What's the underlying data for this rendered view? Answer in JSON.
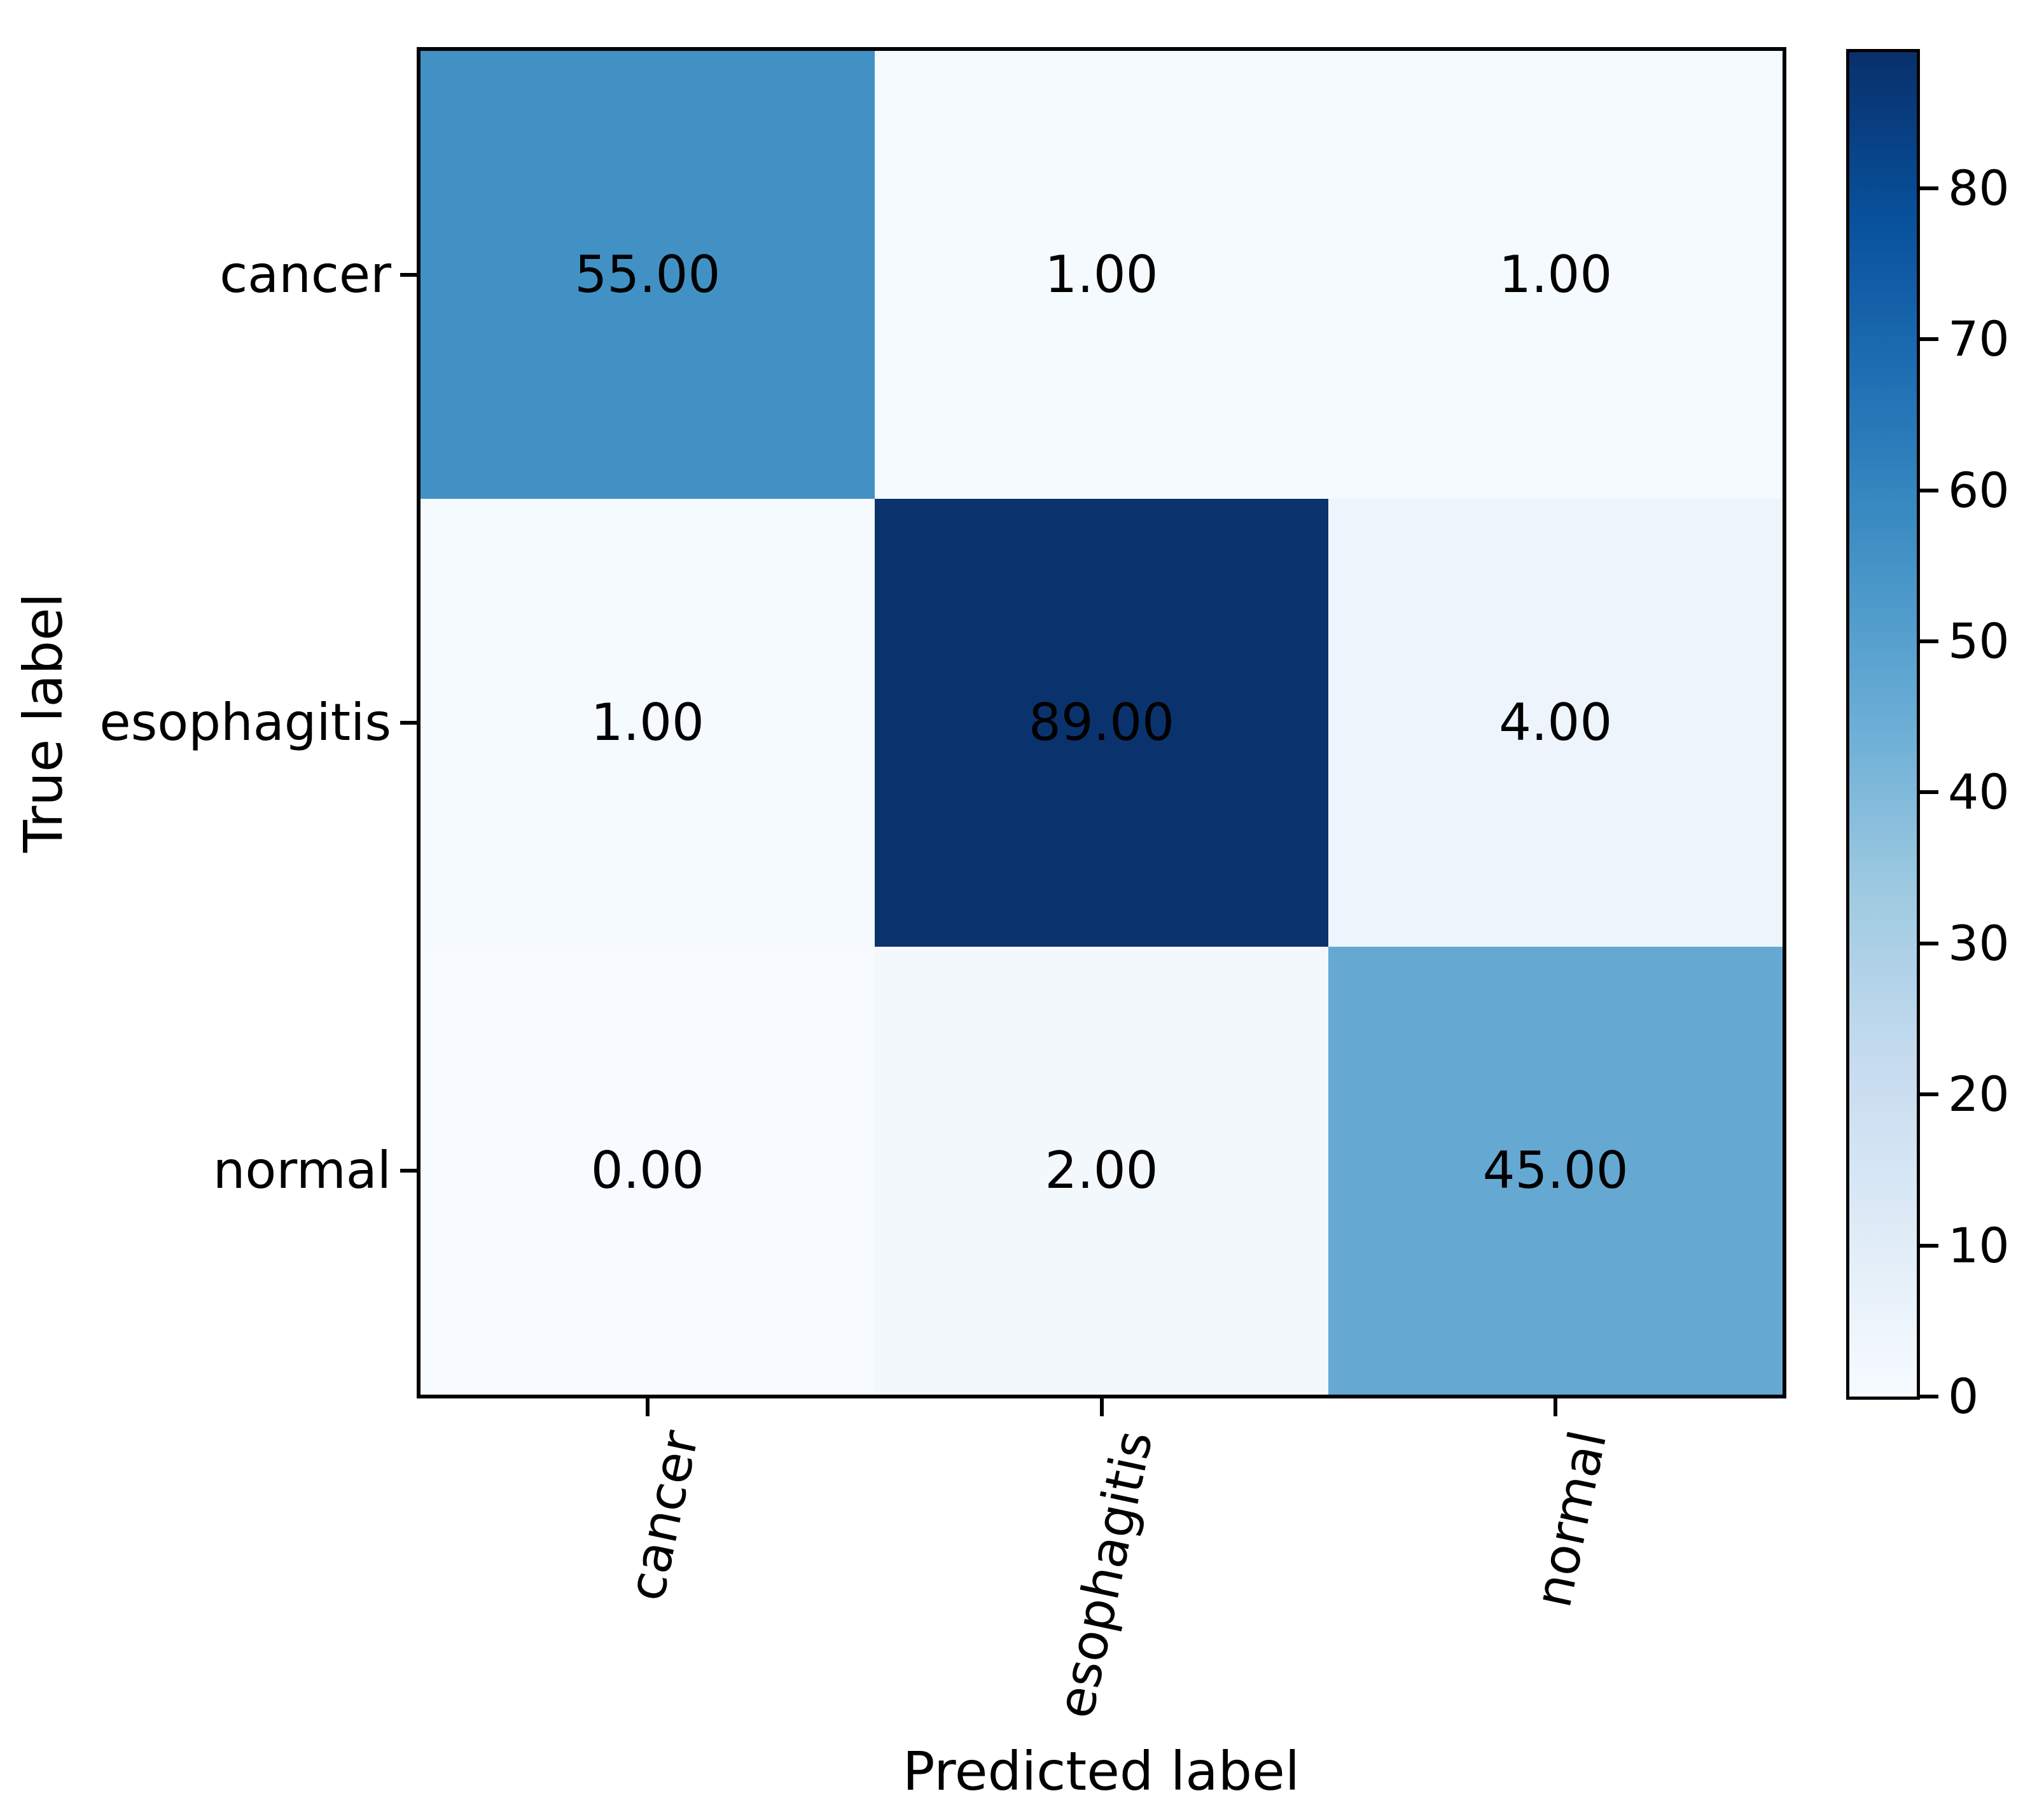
{
  "chart_data": {
    "type": "heatmap",
    "title": "",
    "xlabel": "Predicted label",
    "ylabel": "True label",
    "x_categories": [
      "cancer",
      "esophagitis",
      "normal"
    ],
    "y_categories": [
      "cancer",
      "esophagitis",
      "normal"
    ],
    "matrix": [
      [
        55,
        1,
        1
      ],
      [
        1,
        89,
        4
      ],
      [
        0,
        2,
        45
      ]
    ],
    "cell_labels": [
      [
        "55.00",
        "1.00",
        "1.00"
      ],
      [
        "1.00",
        "89.00",
        "4.00"
      ],
      [
        "0.00",
        "2.00",
        "45.00"
      ]
    ],
    "cell_colors": [
      [
        "#4191c5",
        "#f5fafe",
        "#f5fafe"
      ],
      [
        "#f5fafe",
        "#0a336e",
        "#edf4fb"
      ],
      [
        "#f7fbff",
        "#f3f8fd",
        "#65a9d3"
      ]
    ],
    "value_text_color": "#000000",
    "colormap": "Blues",
    "colormap_stops": [
      {
        "pos": 0.0,
        "color": "#f7fbff"
      },
      {
        "pos": 0.125,
        "color": "#deebf7"
      },
      {
        "pos": 0.25,
        "color": "#c6dbef"
      },
      {
        "pos": 0.375,
        "color": "#9ecae1"
      },
      {
        "pos": 0.5,
        "color": "#6baed6"
      },
      {
        "pos": 0.625,
        "color": "#4292c6"
      },
      {
        "pos": 0.75,
        "color": "#2171b5"
      },
      {
        "pos": 0.875,
        "color": "#08519c"
      },
      {
        "pos": 1.0,
        "color": "#08306b"
      }
    ],
    "colorbar": {
      "vmin": 0,
      "vmax": 89,
      "ticks": [
        0,
        10,
        20,
        30,
        40,
        50,
        60,
        70,
        80
      ],
      "position": "right"
    },
    "grid": false,
    "spine_color": "#000000",
    "background_color": "#ffffff"
  }
}
